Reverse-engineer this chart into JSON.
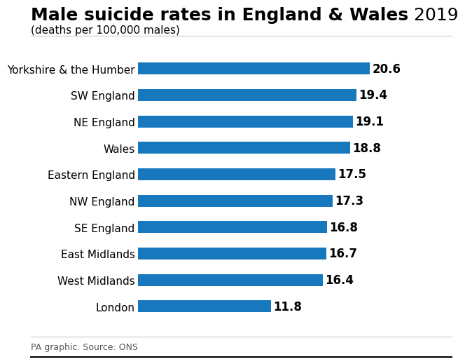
{
  "title_bold": "Male suicide rates in England & Wales",
  "title_year": " 2019",
  "subtitle": "(deaths per 100,000 males)",
  "footer": "PA graphic. Source: ONS",
  "categories": [
    "Yorkshire & the Humber",
    "SW England",
    "NE England",
    "Wales",
    "Eastern England",
    "NW England",
    "SE England",
    "East Midlands",
    "West Midlands",
    "London"
  ],
  "values": [
    20.6,
    19.4,
    19.1,
    18.8,
    17.5,
    17.3,
    16.8,
    16.7,
    16.4,
    11.8
  ],
  "bar_color": "#1878be",
  "background_color": "#ffffff",
  "text_color": "#000000",
  "xlim": [
    0,
    23.5
  ],
  "bar_height": 0.45,
  "label_fontsize": 11,
  "value_fontsize": 12,
  "title_fontsize": 18,
  "subtitle_fontsize": 11,
  "footer_fontsize": 9,
  "line_color": "#cccccc"
}
